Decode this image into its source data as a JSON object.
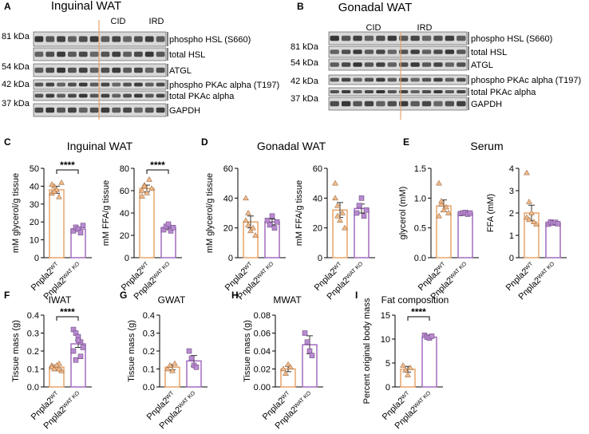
{
  "blots": [
    {
      "letter": "A",
      "title": "Inguinal WAT",
      "groups": [
        "CID",
        "IRD"
      ],
      "kda": [
        "81 kDa",
        "54 kDa",
        "42 kDa",
        "37 kDa"
      ],
      "proteins": [
        "phospho HSL (S660)",
        "total HSL",
        "ATGL",
        "phospho PKAc alpha (T197)",
        "total PKAc alpha",
        "GAPDH"
      ]
    },
    {
      "letter": "B",
      "title": "Gonadal WAT",
      "groups": [
        "CID",
        "IRD"
      ],
      "kda": [
        "81 kDa",
        "54 kDa",
        "42 kDa",
        "37 kDa"
      ],
      "proteins": [
        "phospho HSL (S660)",
        "total HSL",
        "ATGL",
        "phospho PKAc alpha (T197)",
        "total PKAc alpha",
        "GAPDH"
      ]
    }
  ],
  "panels": [
    {
      "letter": "C",
      "title": "Inguinal WAT"
    },
    {
      "letter": "D",
      "title": "Gonadal WAT"
    },
    {
      "letter": "E",
      "title": "Serum"
    },
    {
      "letter": "F"
    },
    {
      "letter": "G"
    },
    {
      "letter": "H"
    },
    {
      "letter": "I"
    }
  ],
  "chart_data": [
    {
      "type": "bar",
      "ylabel": "mM glycerol/g tissue",
      "categories": [
        {
          "base": "Pnpla2",
          "sup": "WT"
        },
        {
          "base": "Pnpla2",
          "sup": "WAT KO"
        }
      ],
      "values": [
        38,
        16
      ],
      "errors": [
        2,
        1
      ],
      "points": [
        [
          36,
          40,
          38,
          34,
          42,
          41,
          37
        ],
        [
          15,
          17,
          16,
          14,
          18
        ]
      ],
      "ylim": [
        0,
        50
      ],
      "yticks": [
        0,
        10,
        20,
        30,
        40,
        50
      ],
      "significance": "****"
    },
    {
      "type": "bar",
      "ylabel": "mM FFA/g tissue",
      "categories": [
        {
          "base": "Pnpla2",
          "sup": "WT"
        },
        {
          "base": "Pnpla2",
          "sup": "WAT KO"
        }
      ],
      "values": [
        62,
        27
      ],
      "errors": [
        3,
        2
      ],
      "points": [
        [
          60,
          65,
          58,
          70,
          62,
          55,
          64
        ],
        [
          25,
          28,
          30,
          24,
          27
        ]
      ],
      "ylim": [
        0,
        80
      ],
      "yticks": [
        0,
        20,
        40,
        60,
        80
      ],
      "significance": "****"
    },
    {
      "type": "bar",
      "ylabel": "mM glycerol/g tissue",
      "categories": [
        {
          "base": "Pnpla2",
          "sup": "WT"
        },
        {
          "base": "Pnpla2",
          "sup": "WAT KO"
        }
      ],
      "values": [
        24,
        24
      ],
      "errors": [
        4,
        2
      ],
      "points": [
        [
          40,
          30,
          18,
          20,
          15,
          25,
          22
        ],
        [
          25,
          22,
          28,
          20,
          24
        ]
      ],
      "ylim": [
        0,
        60
      ],
      "yticks": [
        0,
        20,
        40,
        60
      ]
    },
    {
      "type": "bar",
      "ylabel": "mM FFA/g tissue",
      "categories": [
        {
          "base": "Pnpla2",
          "sup": "WT"
        },
        {
          "base": "Pnpla2",
          "sup": "WAT KO"
        }
      ],
      "values": [
        32,
        33
      ],
      "errors": [
        5,
        3
      ],
      "points": [
        [
          50,
          35,
          25,
          30,
          20,
          40,
          28
        ],
        [
          30,
          35,
          40,
          28,
          32
        ]
      ],
      "ylim": [
        0,
        60
      ],
      "yticks": [
        0,
        20,
        40,
        60
      ]
    },
    {
      "type": "bar",
      "ylabel": "glycerol (mM)",
      "categories": [
        {
          "base": "Pnpla2",
          "sup": "WT"
        },
        {
          "base": "Pnpla2",
          "sup": "WAT KO"
        }
      ],
      "values": [
        0.87,
        0.75
      ],
      "errors": [
        0.1,
        0.02
      ],
      "points": [
        [
          1.25,
          0.9,
          0.8,
          0.85,
          0.75,
          0.7,
          0.95
        ],
        [
          0.74,
          0.75,
          0.76,
          0.73,
          0.75
        ]
      ],
      "ylim": [
        0,
        1.5
      ],
      "yticks": [
        {
          "value": 0,
          "label": "0.0"
        },
        0.5,
        {
          "value": 1,
          "label": "1.0"
        },
        1.5
      ]
    },
    {
      "type": "bar",
      "ylabel": "FFA (mM)",
      "categories": [
        {
          "base": "Pnpla2",
          "sup": "WT"
        },
        {
          "base": "Pnpla2",
          "sup": "WAT KO"
        }
      ],
      "values": [
        2.0,
        1.55
      ],
      "errors": [
        0.35,
        0.05
      ],
      "points": [
        [
          3.8,
          2.5,
          2.0,
          1.6,
          1.5,
          1.8,
          1.7
        ],
        [
          1.5,
          1.6,
          1.55,
          1.58,
          1.52
        ]
      ],
      "ylim": [
        0,
        4
      ],
      "yticks": [
        0,
        1,
        2,
        3,
        4
      ]
    },
    {
      "type": "bar",
      "title": "IWAT",
      "ylabel": "Tissue mass (g)",
      "categories": [
        {
          "base": "Pnpla2",
          "sup": "WT"
        },
        {
          "base": "Pnpla2",
          "sup": "WAT KO"
        }
      ],
      "values": [
        0.11,
        0.24
      ],
      "errors": [
        0.01,
        0.02
      ],
      "points": [
        [
          0.12,
          0.11,
          0.1,
          0.13,
          0.09,
          0.11,
          0.1,
          0.12,
          0.1
        ],
        [
          0.32,
          0.3,
          0.28,
          0.25,
          0.22,
          0.2,
          0.15,
          0.26,
          0.17
        ]
      ],
      "ylim": [
        0,
        0.4
      ],
      "yticks": [
        {
          "value": 0,
          "label": "0.0"
        },
        0.1,
        0.2,
        0.3,
        0.4
      ],
      "significance": "****"
    },
    {
      "type": "bar",
      "title": "GWAT",
      "ylabel": "Tissue mass (g)",
      "categories": [
        {
          "base": "Pnpla2",
          "sup": "WT"
        },
        {
          "base": "Pnpla2",
          "sup": "WAT KO"
        }
      ],
      "values": [
        0.11,
        0.145
      ],
      "errors": [
        0.015,
        0.03
      ],
      "points": [
        [
          0.1,
          0.12,
          0.09,
          0.13
        ],
        [
          0.2,
          0.16,
          0.12,
          0.11
        ]
      ],
      "ylim": [
        0,
        0.4
      ],
      "yticks": [
        {
          "value": 0,
          "label": "0.0"
        },
        0.1,
        0.2,
        0.3,
        0.4
      ]
    },
    {
      "type": "bar",
      "title": "MWAT",
      "ylabel": "Tissue mass (g)",
      "categories": [
        {
          "base": "Pnpla2",
          "sup": "WT"
        },
        {
          "base": "Pnpla2",
          "sup": "WAT KO"
        }
      ],
      "values": [
        0.02,
        0.047
      ],
      "errors": [
        0.003,
        0.01
      ],
      "points": [
        [
          0.02,
          0.015,
          0.025,
          0.022
        ],
        [
          0.06,
          0.05,
          0.04,
          0.035
        ]
      ],
      "ylim": [
        0,
        0.08
      ],
      "yticks": [
        {
          "value": 0,
          "label": "0.00"
        },
        {
          "value": 0.02,
          "label": "0.02"
        },
        {
          "value": 0.04,
          "label": "0.04"
        },
        {
          "value": 0.06,
          "label": "0.06"
        },
        {
          "value": 0.08,
          "label": "0.08"
        }
      ]
    },
    {
      "type": "bar",
      "title": "Fat composition",
      "ylabel": "Percent original body mass",
      "categories": [
        {
          "base": "Pnpla2",
          "sup": "WT"
        },
        {
          "base": "Pnpla2",
          "sup": "WAT KO"
        }
      ],
      "values": [
        3.7,
        10.4
      ],
      "errors": [
        0.6,
        0.3
      ],
      "points": [
        [
          4.5,
          3.5,
          2.5,
          4.0
        ],
        [
          10.8,
          10.4,
          10.2,
          10.6
        ]
      ],
      "ylim": [
        0,
        15
      ],
      "yticks": [
        0,
        5,
        10,
        15
      ],
      "significance": "****"
    }
  ]
}
